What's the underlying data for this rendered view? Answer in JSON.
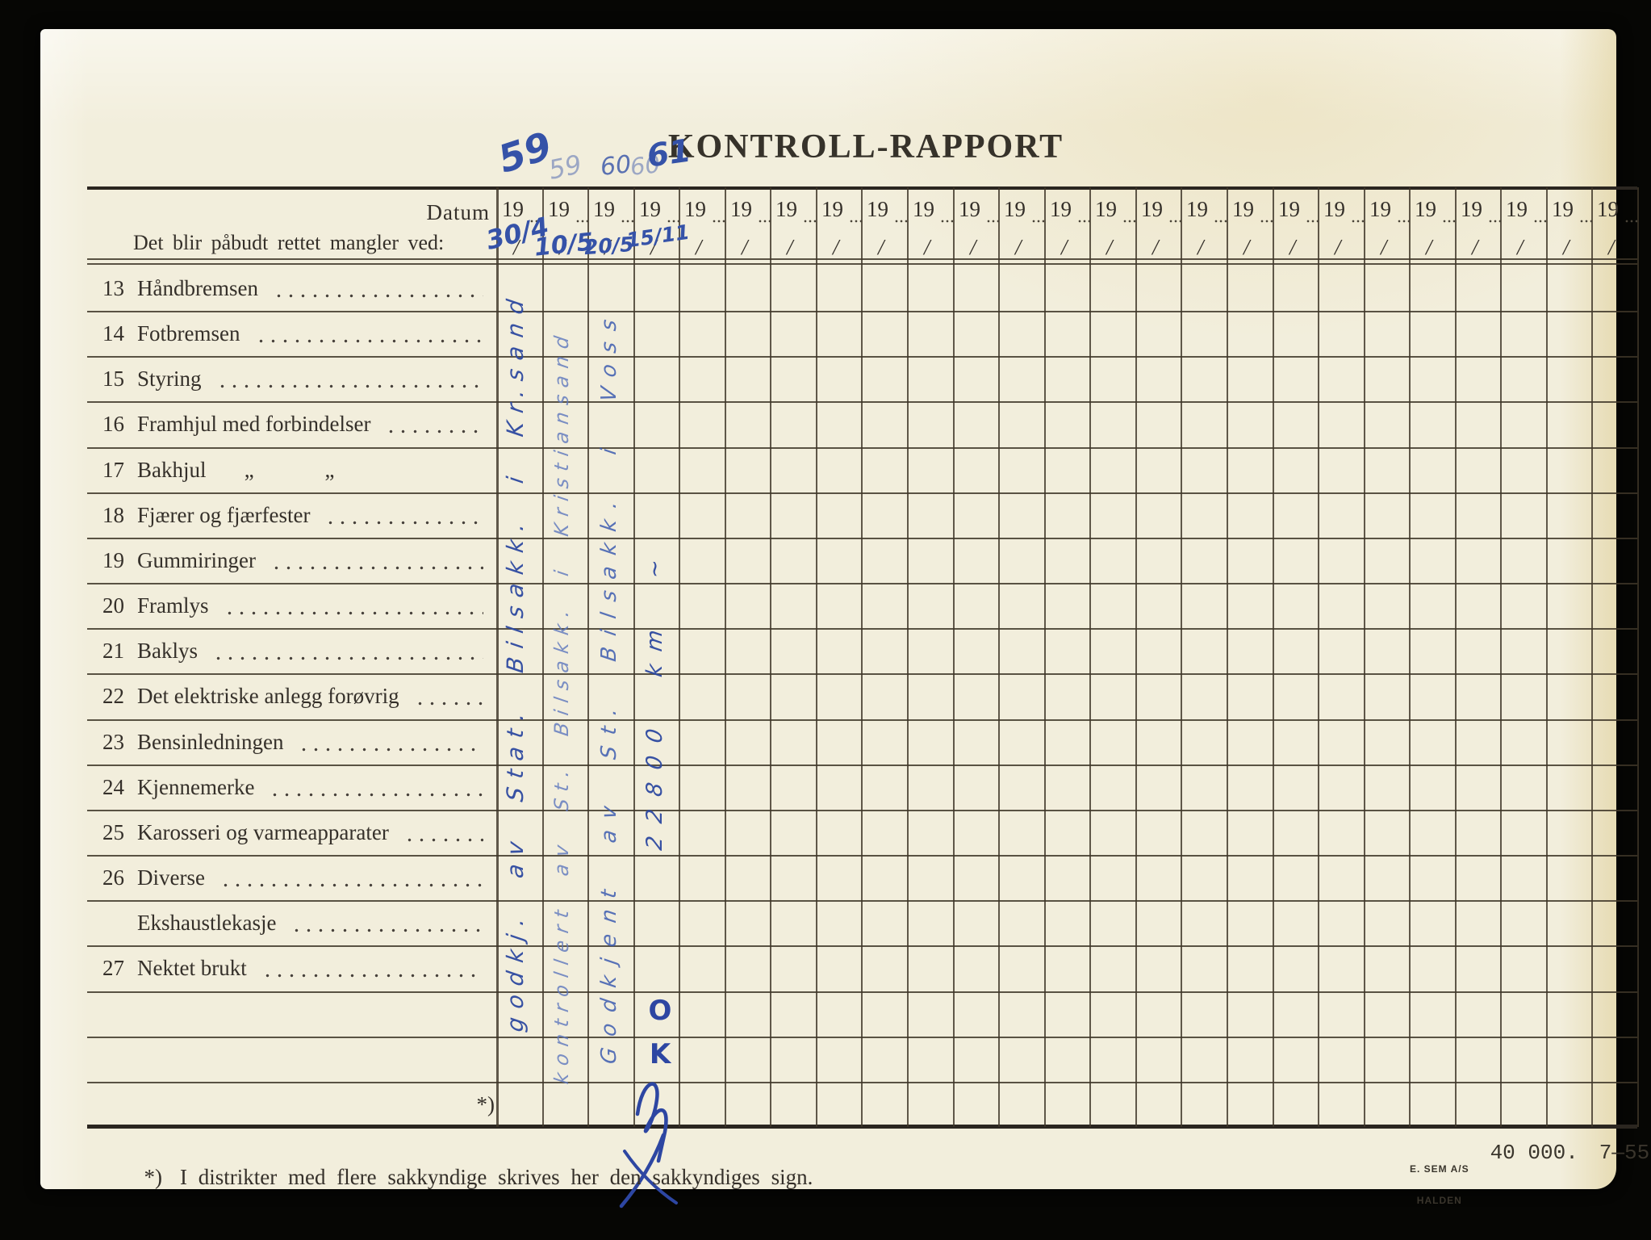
{
  "document": {
    "kind": "scanned vehicle inspection form",
    "title": "KONTROLL-RAPPORT",
    "header": {
      "datum_label": "Datum",
      "left_note": "Det blir påbudt rettet mangler ved:",
      "year_prefix": "19",
      "date_slash": "/",
      "column_count": 25
    },
    "rows": [
      {
        "num": "13",
        "label": "Håndbremsen",
        "dots": true
      },
      {
        "num": "14",
        "label": "Fotbremsen",
        "dots": true
      },
      {
        "num": "15",
        "label": "Styring",
        "dots": true
      },
      {
        "num": "16",
        "label": "Framhjul med forbindelser",
        "dots": true
      },
      {
        "num": "17",
        "label": "Bakhjul       „             „",
        "dots": false
      },
      {
        "num": "18",
        "label": "Fjærer og fjærfester",
        "dots": true
      },
      {
        "num": "19",
        "label": "Gummiringer",
        "dots": true
      },
      {
        "num": "20",
        "label": "Framlys",
        "dots": true
      },
      {
        "num": "21",
        "label": "Baklys",
        "dots": true
      },
      {
        "num": "22",
        "label": "Det elektriske anlegg forøvrig",
        "dots": true
      },
      {
        "num": "23",
        "label": "Bensinledningen",
        "dots": true
      },
      {
        "num": "24",
        "label": "Kjennemerke",
        "dots": true
      },
      {
        "num": "25",
        "label": "Karosseri og varmeapparater",
        "dots": true
      },
      {
        "num": "26",
        "label": "Diverse",
        "dots": true
      },
      {
        "num": "",
        "label": "Ekshaustlekasje",
        "dots": true
      },
      {
        "num": "27",
        "label": "Nektet brukt",
        "dots": true
      },
      {
        "num": "",
        "label": "",
        "dots": false
      },
      {
        "num": "",
        "label": "",
        "dots": false
      },
      {
        "num": "",
        "label": "*)",
        "dots": false,
        "align": "right"
      }
    ],
    "footnote": {
      "marker": "*)",
      "text": "I distrikter med flere sakkyndige skrives her den sakkyndiges sign."
    },
    "printer": {
      "name_line1": "E. SEM A/S",
      "name_line2": "HALDEN",
      "edition": "40 000.",
      "date_code": "7—55."
    },
    "handwriting": {
      "ink_color": "#3552a8",
      "years_over_columns": [
        {
          "column": 1,
          "text": "59",
          "style": "large"
        },
        {
          "column": 2,
          "text": "59",
          "style": "faint"
        },
        {
          "column": 3,
          "text": "60",
          "style": "normal"
        },
        {
          "column": 4,
          "text": "60",
          "style": "faint"
        },
        {
          "column": 4,
          "text": "61",
          "style": "bold"
        }
      ],
      "dates_in_header": [
        {
          "column": 1,
          "text": "30/4"
        },
        {
          "column": 2,
          "text": "10/5"
        },
        {
          "column": 3,
          "text": "20/5"
        },
        {
          "column": 4,
          "text": "15/11"
        }
      ],
      "vertical_notes": [
        {
          "column": 1,
          "text": "godkj. av Stat. Bilsakk. i Kr.sand"
        },
        {
          "column": 2,
          "text": "kontrollert av St. Bilsakk. i Kristiansand"
        },
        {
          "column": 3,
          "text": "Godkjent av St. Bilsakk. i Voss"
        },
        {
          "column": 4,
          "text": "22800 km ~"
        }
      ],
      "ok_mark": "OK",
      "signature": "signature-flourish"
    }
  },
  "colors": {
    "background": "#060604",
    "paper": "#f2eedc",
    "printed_ink": "#35302a",
    "grid_line": "#3e3628",
    "blue_ink": "#3552a8",
    "faint_blue_ink": "#8b9dd0"
  }
}
